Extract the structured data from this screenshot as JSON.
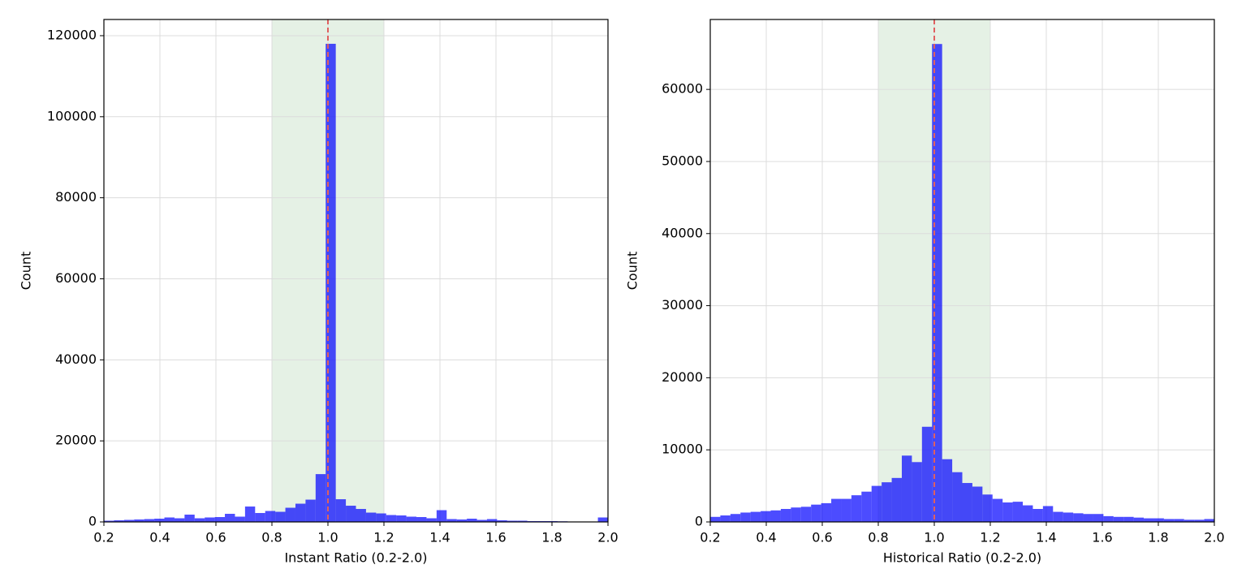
{
  "chart_data": [
    {
      "type": "histogram",
      "xlabel": "Instant Ratio (0.2-2.0)",
      "ylabel": "Count",
      "color": "#0000ff",
      "alpha": 0.7,
      "bins": [
        0.2,
        0.236,
        0.272,
        0.308,
        0.344,
        0.38,
        0.416,
        0.452,
        0.488,
        0.524,
        0.56,
        0.596,
        0.632,
        0.668,
        0.704,
        0.74,
        0.776,
        0.812,
        0.848,
        0.884,
        0.92,
        0.956,
        0.992,
        1.028,
        1.064,
        1.1,
        1.136,
        1.172,
        1.208,
        1.244,
        1.28,
        1.316,
        1.352,
        1.388,
        1.424,
        1.46,
        1.496,
        1.532,
        1.568,
        1.604,
        1.64,
        1.676,
        1.712,
        1.748,
        1.784,
        1.82,
        1.856,
        1.892,
        1.928,
        1.964,
        2.0
      ],
      "values": [
        300,
        400,
        500,
        600,
        700,
        800,
        1100,
        900,
        1800,
        900,
        1100,
        1200,
        2000,
        1300,
        3800,
        2200,
        2700,
        2500,
        3500,
        4500,
        5500,
        11800,
        118000,
        5600,
        4000,
        3200,
        2300,
        2100,
        1700,
        1600,
        1300,
        1200,
        900,
        2900,
        700,
        600,
        800,
        500,
        700,
        400,
        300,
        300,
        200,
        200,
        200,
        150,
        100,
        100,
        100,
        1100
      ],
      "span": [
        0.8,
        1.2
      ],
      "span_color": "#e5f1e5",
      "vline": 1,
      "vline_color": "#e06060",
      "xlim": [
        0.2,
        2.0
      ],
      "ylim": [
        0,
        124000
      ],
      "xticks": [
        0.2,
        0.4,
        0.6,
        0.8,
        {
          "value": 1,
          "label": "1.0"
        },
        1.2,
        1.4,
        1.6,
        1.8,
        {
          "value": 2,
          "label": "2.0"
        }
      ],
      "yticks": [
        0,
        20000,
        40000,
        60000,
        80000,
        100000,
        120000
      ],
      "grid": true
    },
    {
      "type": "histogram",
      "xlabel": "Historical Ratio (0.2-2.0)",
      "ylabel": "Count",
      "color": "#0000ff",
      "alpha": 0.7,
      "bins": [
        0.2,
        0.236,
        0.272,
        0.308,
        0.344,
        0.38,
        0.416,
        0.452,
        0.488,
        0.524,
        0.56,
        0.596,
        0.632,
        0.668,
        0.704,
        0.74,
        0.776,
        0.812,
        0.848,
        0.884,
        0.92,
        0.956,
        0.992,
        1.028,
        1.064,
        1.1,
        1.136,
        1.172,
        1.208,
        1.244,
        1.28,
        1.316,
        1.352,
        1.388,
        1.424,
        1.46,
        1.496,
        1.532,
        1.568,
        1.604,
        1.64,
        1.676,
        1.712,
        1.748,
        1.784,
        1.82,
        1.856,
        1.892,
        1.928,
        1.964,
        2.0
      ],
      "values": [
        700,
        900,
        1100,
        1300,
        1400,
        1500,
        1600,
        1800,
        2000,
        2100,
        2400,
        2600,
        3200,
        3200,
        3700,
        4200,
        5000,
        5500,
        6100,
        9200,
        8300,
        13200,
        66300,
        8700,
        6900,
        5400,
        4900,
        3800,
        3200,
        2700,
        2800,
        2300,
        1800,
        2200,
        1400,
        1300,
        1200,
        1100,
        1100,
        800,
        700,
        700,
        600,
        500,
        500,
        400,
        400,
        300,
        300,
        400
      ],
      "span": [
        0.8,
        1.2
      ],
      "span_color": "#e5f1e5",
      "vline": 1,
      "vline_color": "#e06060",
      "xlim": [
        0.2,
        2.0
      ],
      "ylim": [
        0,
        69700
      ],
      "xticks": [
        0.2,
        0.4,
        0.6,
        0.8,
        {
          "value": 1,
          "label": "1.0"
        },
        1.2,
        1.4,
        1.6,
        1.8,
        {
          "value": 2,
          "label": "2.0"
        }
      ],
      "yticks": [
        0,
        10000,
        20000,
        30000,
        40000,
        50000,
        60000
      ],
      "grid": true
    }
  ]
}
